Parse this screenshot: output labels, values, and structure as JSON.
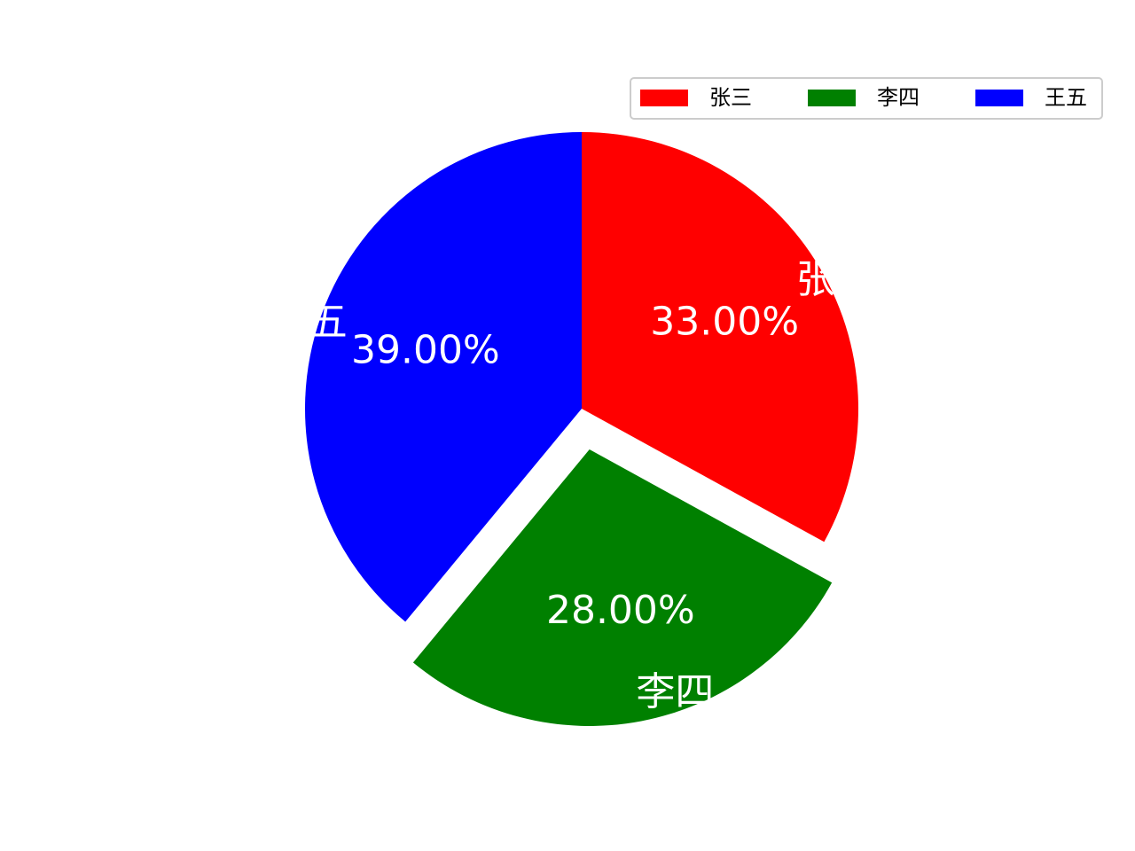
{
  "chart_data": {
    "type": "pie",
    "categories": [
      "张三",
      "李四",
      "王五"
    ],
    "values": [
      33,
      28,
      39
    ],
    "value_labels": [
      "33.00%",
      "28.00%",
      "39.00%"
    ],
    "colors": [
      "#ff0000",
      "#008000",
      "#0000ff"
    ],
    "explode": [
      0,
      0.15,
      0
    ],
    "startangle": 90,
    "counterclock": false,
    "legend": "upper right"
  }
}
